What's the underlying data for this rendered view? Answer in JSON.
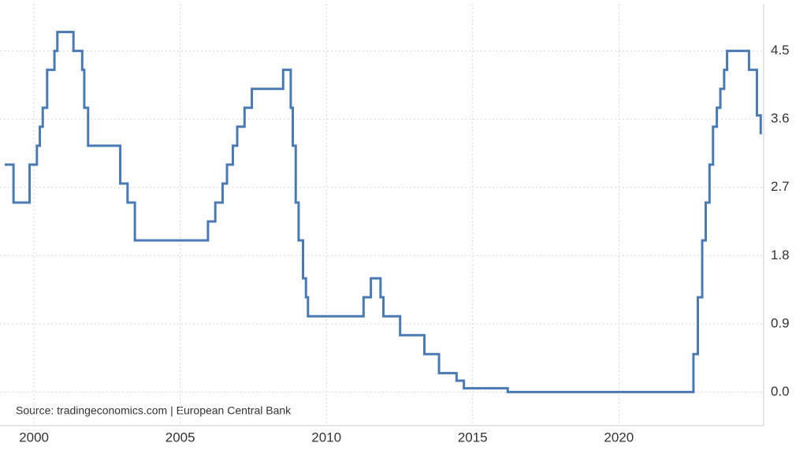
{
  "chart_data": {
    "type": "line",
    "source": "Source: tradingeconomics.com | European Central Bank",
    "x": [
      1999.0,
      1999.3,
      1999.85,
      2000.1,
      2000.2,
      2000.3,
      2000.45,
      2000.7,
      2000.8,
      2001.35,
      2001.65,
      2001.72,
      2001.85,
      2002.95,
      2003.2,
      2003.45,
      2005.95,
      2006.2,
      2006.45,
      2006.6,
      2006.8,
      2006.95,
      2007.2,
      2007.45,
      2008.52,
      2008.78,
      2008.85,
      2008.95,
      2009.05,
      2009.2,
      2009.3,
      2009.37,
      2011.27,
      2011.52,
      2011.85,
      2011.95,
      2012.52,
      2013.35,
      2013.85,
      2014.45,
      2014.7,
      2016.2,
      2022.55,
      2022.7,
      2022.85,
      2022.97,
      2023.1,
      2023.22,
      2023.35,
      2023.47,
      2023.6,
      2023.7,
      2024.45,
      2024.72,
      2024.85
    ],
    "series": [
      {
        "color": "#4a7ab5",
        "values": [
          3.0,
          2.5,
          3.0,
          3.25,
          3.5,
          3.75,
          4.25,
          4.5,
          4.75,
          4.5,
          4.25,
          3.75,
          3.25,
          2.75,
          2.5,
          2.0,
          2.25,
          2.5,
          2.75,
          3.0,
          3.25,
          3.5,
          3.75,
          4.0,
          4.25,
          3.75,
          3.25,
          2.5,
          2.0,
          1.5,
          1.25,
          1.0,
          1.25,
          1.5,
          1.25,
          1.0,
          0.75,
          0.5,
          0.25,
          0.15,
          0.05,
          0.0,
          0.5,
          1.25,
          2.0,
          2.5,
          3.0,
          3.5,
          3.75,
          4.0,
          4.25,
          4.5,
          4.25,
          3.65,
          3.4
        ]
      }
    ],
    "xlim": [
      1999.0,
      2024.87
    ],
    "xticks": [
      2000,
      2005,
      2010,
      2015,
      2020
    ],
    "ylim": [
      -0.36,
      5.12
    ],
    "yticks": [
      {
        "value": 0,
        "label": "0.0"
      },
      0.9,
      1.8,
      2.7,
      3.6,
      4.5
    ],
    "step": true,
    "grid": true
  }
}
